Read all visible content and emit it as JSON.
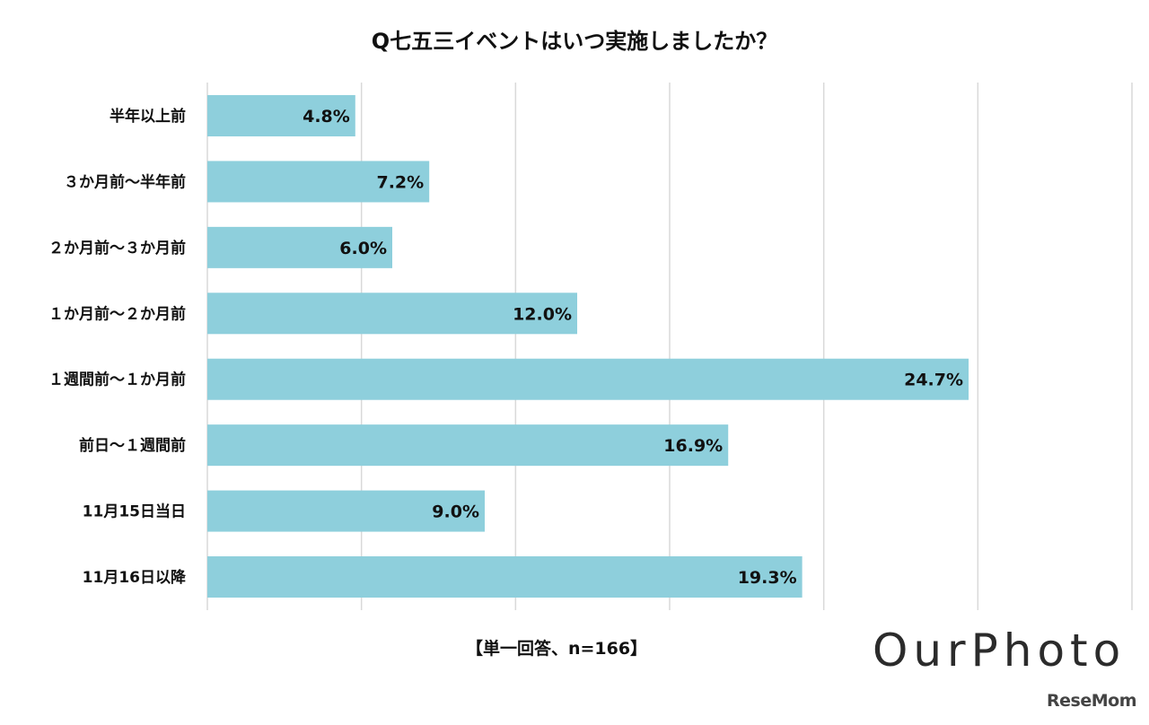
{
  "chart_data": {
    "type": "bar",
    "orientation": "horizontal",
    "title": "Q七五三イベントはいつ実施しましたか？",
    "categories": [
      "半年以上前",
      "３か月前～半年前",
      "２か月前～３か月前",
      "１か月前～２か月前",
      "１週間前～１か月前",
      "前日～１週間前",
      "11月15日当日",
      "11月16日以降"
    ],
    "values": [
      4.8,
      7.2,
      6.0,
      12.0,
      24.7,
      16.9,
      9.0,
      19.3
    ],
    "data_labels": [
      "4.8%",
      "7.2%",
      "6.0%",
      "12.0%",
      "24.7%",
      "16.9%",
      "9.0%",
      "19.3%"
    ],
    "xlim": [
      0,
      30
    ],
    "grid": true,
    "legend": "none",
    "bar_color": "#8ecfdc",
    "grid_color": "#d9d9d9",
    "note": "【単一回答、n=166】"
  },
  "branding": {
    "logo_text": "OurPhoto",
    "watermark": "ReseMom"
  }
}
